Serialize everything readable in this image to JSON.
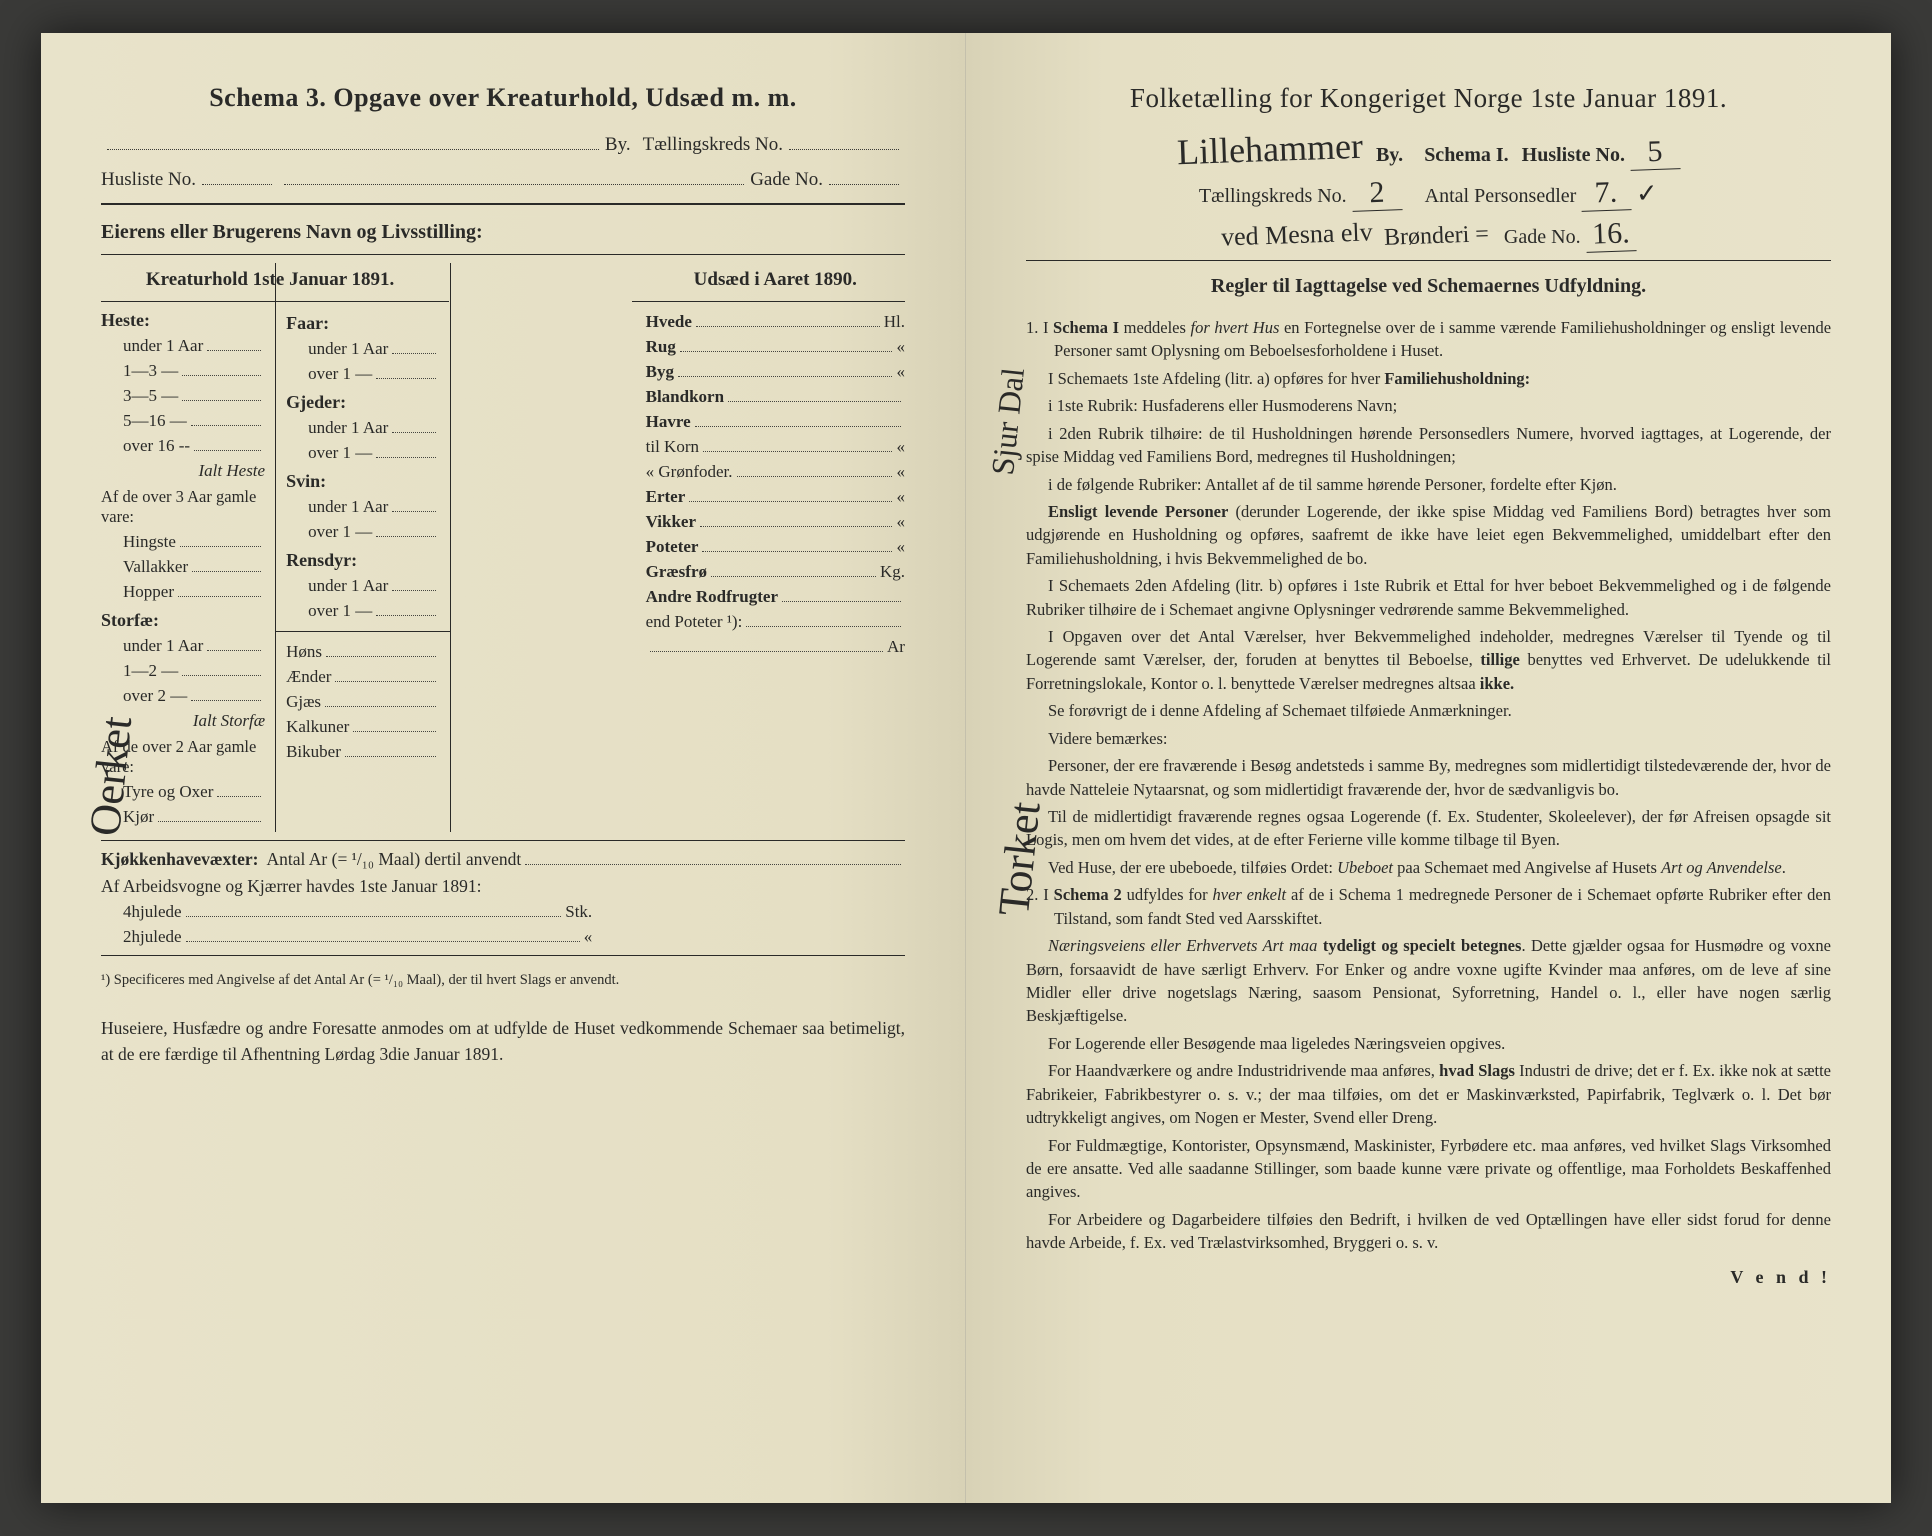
{
  "left": {
    "schema_title": "Schema 3.   Opgave over Kreaturhold, Udsæd m. m.",
    "by_label": "By.",
    "taellingskreds_label": "Tællingskreds No.",
    "husliste_label": "Husliste No.",
    "gade_label": "Gade No.",
    "eier_label": "Eierens eller Brugerens Navn og Livsstilling:",
    "col1_header": "Kreaturhold 1ste Januar 1891.",
    "col3_header": "Udsæd i Aaret 1890.",
    "heste": {
      "label": "Heste:",
      "rows": [
        "under 1 Aar",
        "1—3   —",
        "3—5   —",
        "5—16  —",
        "over 16 --"
      ],
      "ialt": "Ialt Heste",
      "over3": "Af de over 3 Aar gamle vare:",
      "sub": [
        "Hingste",
        "Vallakker",
        "Hopper"
      ]
    },
    "storfae": {
      "label": "Storfæ:",
      "rows": [
        "under 1 Aar",
        "1—2   —",
        "over 2   —"
      ],
      "ialt": "Ialt Storfæ",
      "over2": "Af de over 2 Aar gamle vare:",
      "sub": [
        "Tyre og Oxer",
        "Kjør"
      ]
    },
    "col2_groups": [
      {
        "label": "Faar:",
        "rows": [
          "under 1 Aar",
          "over 1   —"
        ]
      },
      {
        "label": "Gjeder:",
        "rows": [
          "under 1 Aar",
          "over 1   —"
        ]
      },
      {
        "label": "Svin:",
        "rows": [
          "under 1 Aar",
          "over 1   —"
        ]
      },
      {
        "label": "Rensdyr:",
        "rows": [
          "under 1 Aar",
          "over 1   —"
        ]
      }
    ],
    "col2_singles": [
      "Høns",
      "Ænder",
      "Gjæs",
      "Kalkuner",
      "Bikuber"
    ],
    "col3_items": [
      {
        "l": "Hvede",
        "u": "Hl."
      },
      {
        "l": "Rug",
        "u": "«"
      },
      {
        "l": "Byg",
        "u": "«"
      },
      {
        "l": "Blandkorn",
        "u": ""
      },
      {
        "l": "Havre",
        "u": ""
      },
      {
        "l": "   til Korn",
        "u": "«"
      },
      {
        "l": "   «  Grønfoder.",
        "u": "«"
      },
      {
        "l": "Erter",
        "u": "«"
      },
      {
        "l": "Vikker",
        "u": "«"
      },
      {
        "l": "Poteter",
        "u": "«"
      },
      {
        "l": "Græsfrø",
        "u": "Kg."
      },
      {
        "l": "Andre Rodfrugter",
        "u": ""
      },
      {
        "l": "   end Poteter ¹):",
        "u": ""
      },
      {
        "l": "",
        "u": "Ar"
      }
    ],
    "kjokken": "Kjøkkenhavevæxter:",
    "kjokken_text": "Antal Ar (= ¹/₁₀ Maal) dertil anvendt",
    "arbeid": "Af Arbeidsvogne og Kjærrer havdes 1ste Januar 1891:",
    "hjul4": "4hjulede",
    "hjul4_u": "Stk.",
    "hjul2": "2hjulede",
    "hjul2_u": "«",
    "footnote": "¹) Specificeres med Angivelse af det Antal Ar (= ¹/₁₀ Maal), der til hvert Slags er anvendt.",
    "closing": "Huseiere, Husfædre og andre Foresatte anmodes om at udfylde de Huset vedkommende Schemaer saa betimeligt, at de ere færdige til Afhentning Lørdag 3die Januar 1891.",
    "closing_bold": "Lørdag 3die Januar 1891.",
    "hw_side": "Oerket"
  },
  "right": {
    "title": "Folketælling for Kongeriget Norge 1ste Januar 1891.",
    "by_hw": "Lillehammer",
    "by_label": "By.",
    "schema_label": "Schema I.",
    "husliste_label": "Husliste No.",
    "husliste_hw": "5",
    "taelling_label": "Tællingskreds No.",
    "taelling_hw": "2",
    "antal_label": "Antal Personsedler",
    "antal_hw": "7.",
    "gade_hw1": "ved Mesna elv",
    "gade_hw2": "Brønderi =",
    "gade_label": "Gade No.",
    "gade_hw": "16.",
    "regler": "Regler til Iagttagelse ved Schemaernes Udfyldning.",
    "paras": [
      "1.  I Schema I meddeles for hvert Hus en Fortegnelse over de i samme værende Familiehusholdninger og ensligt levende Personer samt Oplysning om Beboelsesforholdene i Huset.",
      "I Schemaets 1ste Afdeling (litr. a) opføres for hver Familiehusholdning:",
      "i 1ste Rubrik: Husfaderens eller Husmoderens Navn;",
      "i 2den Rubrik tilhøire: de til Husholdningen hørende Personsedlers Numere, hvorved iagttages, at Logerende, der spise Middag ved Familiens Bord, medregnes til Husholdningen;",
      "i de følgende Rubriker: Antallet af de til samme hørende Personer, fordelte efter Kjøn.",
      "Ensligt levende Personer (derunder Logerende, der ikke spise Middag ved Familiens Bord) betragtes hver som udgjørende en Husholdning og opføres, saafremt de ikke have leiet egen Bekvemmelighed, umiddelbart efter den Familiehusholdning, i hvis Bekvemmelighed de bo.",
      "I Schemaets 2den Afdeling (litr. b) opføres i 1ste Rubrik et Ettal for hver beboet Bekvemmelighed og i de følgende Rubriker tilhøire de i Schemaet angivne Oplysninger vedrørende samme Bekvemmelighed.",
      "I Opgaven over det Antal Værelser, hver Bekvemmelighed indeholder, medregnes Værelser til Tyende og til Logerende samt Værelser, der, foruden at benyttes til Beboelse, tillige benyttes ved Erhvervet.  De udelukkende til Forretningslokale, Kontor o. l. benyttede Værelser medregnes altsaa ikke.",
      "Se forøvrigt de i denne Afdeling af Schemaet tilføiede Anmærkninger.",
      "Videre bemærkes:",
      "Personer, der ere fraværende i Besøg andetsteds i samme By, medregnes som midlertidigt tilstedeværende der, hvor de havde Natteleie Nytaarsnat, og som midlertidigt fraværende der, hvor de sædvanligvis bo.",
      "Til de midlertidigt fraværende regnes ogsaa Logerende (f. Ex. Studenter, Skoleelever), der før Afreisen opsagde sit Logis, men om hvem det vides, at de efter Ferierne ville komme tilbage til Byen.",
      "Ved Huse, der ere ubeboede, tilføies Ordet: Ubeboet paa Schemaet med Angivelse af Husets Art og Anvendelse.",
      "2.  I Schema 2 udfyldes for hver enkelt af de i Schema 1 medregnede Personer de i Schemaet opførte Rubriker efter den Tilstand, som fandt Sted ved Aarsskiftet.",
      "Næringsveiens eller Erhvervets Art maa tydeligt og specielt betegnes. Dette gjælder ogsaa for Husmødre og voxne Børn, forsaavidt de have særligt Erhverv.  For Enker og andre voxne ugifte Kvinder maa anføres, om de leve af sine Midler eller drive nogetslags Næring, saasom Pensionat, Syforretning, Handel o. l., eller have nogen særlig Beskjæftigelse.",
      "For Logerende eller Besøgende maa ligeledes Næringsveien opgives.",
      "For Haandværkere og andre Industridrivende maa anføres, hvad Slags Industri de drive; det er f. Ex. ikke nok at sætte Fabrikeier, Fabrikbestyrer o. s. v.; der maa tilføies, om det er Maskinværksted, Papirfabrik, Teglværk o. l.  Det bør udtrykkeligt angives, om Nogen er Mester, Svend eller Dreng.",
      "For Fuldmægtige, Kontorister, Opsynsmænd, Maskinister, Fyrbødere etc. maa anføres, ved hvilket Slags Virksomhed de ere ansatte.  Ved alle saadanne Stillinger, som baade kunne være private og offentlige, maa Forholdets Beskaffenhed angives.",
      "For Arbeidere og Dagarbeidere tilføies den Bedrift, i hvilken de ved Optællingen have eller sidst forud for denne havde Arbeide, f. Ex. ved Trælastvirksomhed, Bryggeri o. s. v."
    ],
    "vend": "V e n d !",
    "hw_side1": "Sjur Dal",
    "hw_side2": "Torket"
  }
}
